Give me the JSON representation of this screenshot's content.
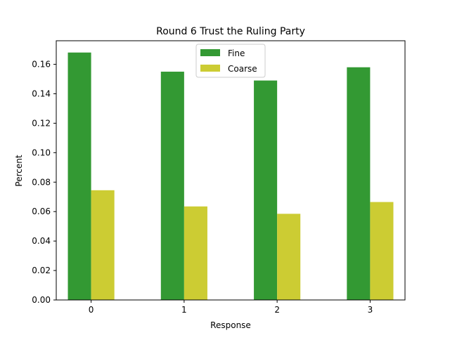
{
  "chart_data": {
    "type": "bar",
    "title": "Round 6 Trust the Ruling Party",
    "xlabel": "Response",
    "ylabel": "Percent",
    "categories": [
      "0",
      "1",
      "2",
      "3"
    ],
    "series": [
      {
        "name": "Fine",
        "color": "#339933",
        "values": [
          0.168,
          0.155,
          0.149,
          0.158
        ]
      },
      {
        "name": "Coarse",
        "color": "#cccc33",
        "values": [
          0.0745,
          0.0635,
          0.0585,
          0.0665
        ]
      }
    ],
    "ylim": [
      0,
      0.176
    ],
    "yticks": [
      "0.00",
      "0.02",
      "0.04",
      "0.06",
      "0.08",
      "0.10",
      "0.12",
      "0.14",
      "0.16"
    ],
    "grid": false,
    "legend_position": "top-center"
  }
}
